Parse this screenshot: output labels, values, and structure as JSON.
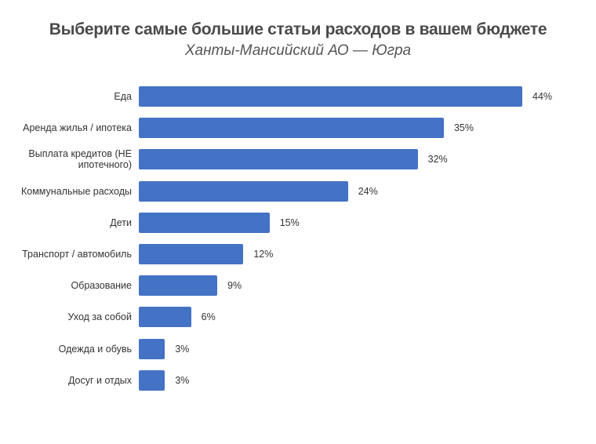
{
  "header": {
    "title": "Выберите самые большие статьи расходов в вашем бюджете",
    "subtitle": "Ханты-Мансийский АО — Югра"
  },
  "style": {
    "bar_color": "#4472c4"
  },
  "chart_data": {
    "type": "bar",
    "orientation": "horizontal",
    "title": "Выберите самые большие статьи расходов в вашем бюджете",
    "subtitle": "Ханты-Мансийский АО — Югра",
    "xlabel": "",
    "ylabel": "",
    "grid": false,
    "legend": null,
    "categories": [
      "Еда",
      "Аренда жилья / ипотека",
      "Выплата кредитов (НЕ ипотечного)",
      "Коммунальные расходы",
      "Дети",
      "Транспорт / автомобиль",
      "Образование",
      "Уход за собой",
      "Одежда и обувь",
      "Досуг и отдых"
    ],
    "values": [
      44,
      35,
      32,
      24,
      15,
      12,
      9,
      6,
      3,
      3
    ],
    "value_labels": [
      "44%",
      "35%",
      "32%",
      "24%",
      "15%",
      "12%",
      "9%",
      "6%",
      "3%",
      "3%"
    ],
    "unit": "%"
  },
  "rows": [
    {
      "label": "Еда",
      "value": "44%"
    },
    {
      "label": "Аренда жилья / ипотека",
      "value": "35%"
    },
    {
      "label": "Выплата кредитов (НЕ ипотечного)",
      "value": "32%"
    },
    {
      "label": "Коммунальные расходы",
      "value": "24%"
    },
    {
      "label": "Дети",
      "value": "15%"
    },
    {
      "label": "Транспорт / автомобиль",
      "value": "12%"
    },
    {
      "label": "Образование",
      "value": "9%"
    },
    {
      "label": "Уход за собой",
      "value": "6%"
    },
    {
      "label": "Одежда и обувь",
      "value": "3%"
    },
    {
      "label": "Досуг и отдых",
      "value": "3%"
    }
  ]
}
